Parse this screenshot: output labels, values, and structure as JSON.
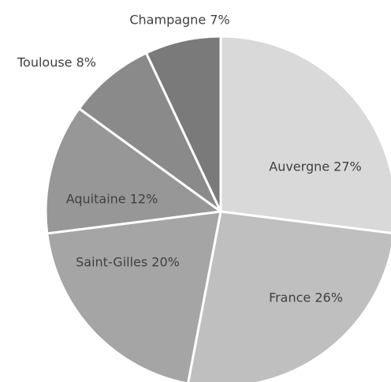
{
  "chart_data": {
    "type": "pie",
    "values": [
      27,
      26,
      20,
      12,
      8,
      7
    ],
    "value_labels": [
      "Auvergne 27%",
      "France 26%",
      "Saint-Gilles 20%",
      "Aquitaine 12%",
      "Toulouse 8%",
      "Champagne 7%"
    ],
    "colors": [
      "#d9d9d9",
      "#bfbfbf",
      "#a5a5a5",
      "#979797",
      "#8a8a8a",
      "#7a7a7a"
    ],
    "start_angle": 90,
    "direction": "clockwise"
  }
}
